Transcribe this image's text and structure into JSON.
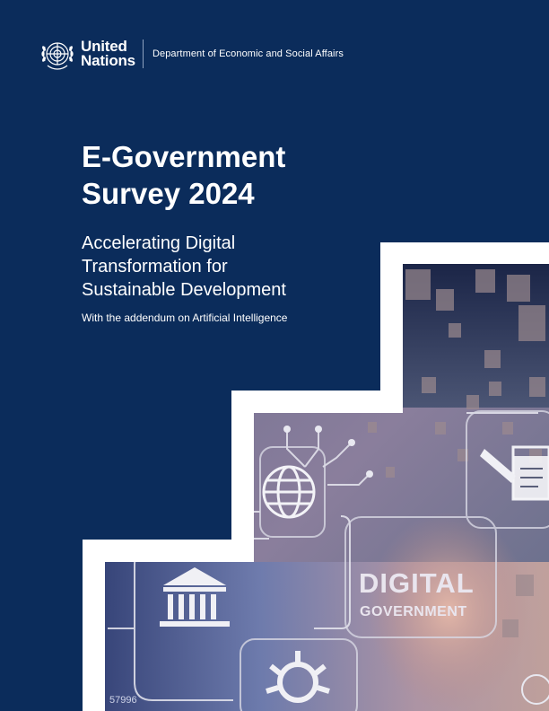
{
  "header": {
    "un_line1": "United",
    "un_line2": "Nations",
    "department": "Department of Economic and Social Affairs"
  },
  "cover": {
    "title_line1": "E-Government",
    "title_line2": "Survey 2024",
    "subtitle_line1": "Accelerating Digital",
    "subtitle_line2": "Transformation for",
    "subtitle_line3": "Sustainable Development",
    "addendum": "With the addendum on Artificial Intelligence"
  },
  "image": {
    "overlay_word1": "DIGITAL",
    "overlay_word2": "GOVERNMENT",
    "corner_number": "57996",
    "icons": [
      "globe-icon",
      "government-building-icon",
      "gear-icon",
      "document-pencil-icon",
      "circuit-icon"
    ]
  },
  "colors": {
    "background": "#0b2c5b",
    "text": "#ffffff",
    "frame": "#ffffff"
  }
}
